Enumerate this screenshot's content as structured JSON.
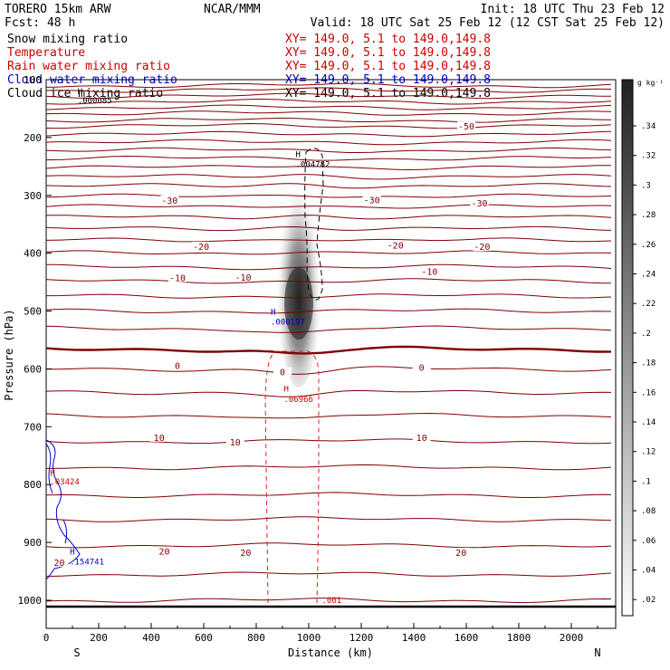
{
  "header": {
    "model": "TORERO  15km ARW",
    "center": "NCAR/MMM",
    "init": "Init: 18 UTC Thu 23 Feb 12",
    "fcst": "Fcst:   48 h",
    "valid": "Valid: 18 UTC Sat 25 Feb 12 (12 CST Sat 25 Feb 12)"
  },
  "legend": [
    {
      "label": "Snow mixing ratio",
      "xy": "XY= 149.0,  5.1 to 149.0,149.8",
      "color": "#000000"
    },
    {
      "label": "Temperature",
      "xy": "XY= 149.0,  5.1 to 149.0,149.8",
      "color": "#cc0000"
    },
    {
      "label": "Rain water mixing ratio",
      "xy": "XY= 149.0,  5.1 to 149.0,149.8",
      "color": "#cc0000"
    },
    {
      "label": "Cloud water mixing ratio",
      "xy": "XY= 149.0,  5.1 to 149.0,149.8",
      "color": "#0000cc"
    },
    {
      "label": "Cloud ice mixing ratio",
      "xy": "XY= 149.0,  5.1 to 149.0,149.8",
      "color": "#000000"
    }
  ],
  "colorbar": {
    "unit": "g kg⁻¹",
    "ticks": [
      ".34",
      ".32",
      ".3",
      ".28",
      ".26",
      ".24",
      ".22",
      ".2",
      ".18",
      ".16",
      ".14",
      ".12",
      ".1",
      ".08",
      ".06",
      ".04",
      ".02"
    ]
  },
  "chart_data": {
    "type": "contour-cross-section",
    "xlabel": "Distance (km)",
    "ylabel": "Pressure (hPa)",
    "xlim": [
      0,
      2180
    ],
    "ylim": [
      1050,
      100
    ],
    "x_ticks": [
      "0",
      "200",
      "400",
      "600",
      "800",
      "1000",
      "1200",
      "1400",
      "1600",
      "1800",
      "2000"
    ],
    "x_tick_values": [
      0,
      200,
      400,
      600,
      800,
      1000,
      1200,
      1400,
      1600,
      1800,
      2000
    ],
    "y_ticks": [
      "100",
      "200",
      "300",
      "400",
      "500",
      "600",
      "700",
      "800",
      "900",
      "1000"
    ],
    "y_tick_values": [
      100,
      200,
      300,
      400,
      500,
      600,
      700,
      800,
      900,
      1000
    ],
    "end_labels": {
      "left": "S",
      "right": "N"
    },
    "temperature_isotherms_hPa": [
      110,
      118,
      128,
      138,
      148,
      158,
      170,
      180,
      194,
      208,
      222,
      236,
      252,
      268,
      284,
      302,
      320,
      338,
      358,
      378,
      400,
      424,
      448,
      474,
      500,
      530,
      566,
      600,
      640,
      680,
      725,
      770,
      818,
      860,
      905,
      955,
      1000
    ],
    "isotherm_labels": [
      {
        "text": "-50",
        "x": 1600,
        "p": 180
      },
      {
        "text": "-30",
        "x": 470,
        "p": 308
      },
      {
        "text": "-30",
        "x": 1240,
        "p": 307
      },
      {
        "text": "-30",
        "x": 1650,
        "p": 313
      },
      {
        "text": "-20",
        "x": 590,
        "p": 388
      },
      {
        "text": "-20",
        "x": 1330,
        "p": 386
      },
      {
        "text": "-20",
        "x": 1660,
        "p": 388
      },
      {
        "text": "-10",
        "x": 500,
        "p": 442
      },
      {
        "text": "-10",
        "x": 750,
        "p": 441
      },
      {
        "text": "-10",
        "x": 1460,
        "p": 431
      },
      {
        "text": "0",
        "x": 500,
        "p": 594
      },
      {
        "text": "0",
        "x": 900,
        "p": 605
      },
      {
        "text": "0",
        "x": 1430,
        "p": 597
      },
      {
        "text": "10",
        "x": 430,
        "p": 718
      },
      {
        "text": "10",
        "x": 720,
        "p": 726
      },
      {
        "text": "10",
        "x": 1430,
        "p": 718
      },
      {
        "text": "20",
        "x": 450,
        "p": 915
      },
      {
        "text": "20",
        "x": 760,
        "p": 917
      },
      {
        "text": "20",
        "x": 1580,
        "p": 917
      },
      {
        "text": "20",
        "x": 50,
        "p": 934
      }
    ],
    "maxima_labels": [
      {
        "text": "H",
        "x": 120,
        "p": 125,
        "series": "cloud_ice"
      },
      {
        "text": ".000085",
        "x": 120,
        "p": 141,
        "series": "cloud_ice"
      },
      {
        "text": "H",
        "x": 950,
        "p": 234,
        "series": "snow"
      },
      {
        "text": ".004782",
        "x": 950,
        "p": 251,
        "series": "snow"
      },
      {
        "text": "H",
        "x": 855,
        "p": 506,
        "series": "cloud_water"
      },
      {
        "text": ".000197",
        "x": 855,
        "p": 523,
        "series": "cloud_water"
      },
      {
        "text": "H",
        "x": 905,
        "p": 639,
        "series": "rain"
      },
      {
        "text": ".06966",
        "x": 905,
        "p": 657,
        "series": "rain"
      },
      {
        "text": "H",
        "x": 15,
        "p": 785,
        "series": "rain"
      },
      {
        "text": ".03424",
        "x": 15,
        "p": 800,
        "series": "rain"
      },
      {
        "text": "H",
        "x": 90,
        "p": 921,
        "series": "cloud_water"
      },
      {
        "text": ".154741",
        "x": 90,
        "p": 938,
        "series": "cloud_water"
      },
      {
        "text": ".001",
        "x": 1050,
        "p": 1005,
        "series": "rain"
      }
    ],
    "snow_max_g_per_kg": 0.34
  }
}
